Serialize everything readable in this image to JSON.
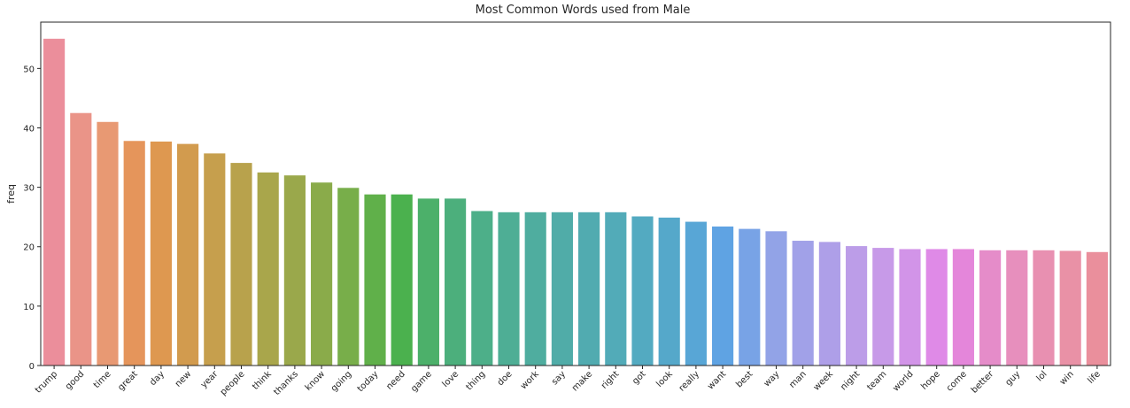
{
  "chart_data": {
    "type": "bar",
    "title": "Most Common Words used from Male",
    "xlabel": "",
    "ylabel": "freq",
    "ylim": [
      0,
      57.8
    ],
    "yticks": [
      0,
      10,
      20,
      30,
      40,
      50
    ],
    "grid": false,
    "categories": [
      "trump",
      "good",
      "time",
      "great",
      "day",
      "new",
      "year",
      "people",
      "think",
      "thanks",
      "know",
      "going",
      "today",
      "need",
      "game",
      "love",
      "thing",
      "doe",
      "work",
      "say",
      "make",
      "right",
      "got",
      "look",
      "really",
      "want",
      "best",
      "way",
      "man",
      "week",
      "night",
      "team",
      "world",
      "hope",
      "come",
      "better",
      "guy",
      "lol",
      "win",
      "life"
    ],
    "values": [
      55,
      42.5,
      41,
      37.8,
      37.7,
      37.3,
      35.7,
      34.1,
      32.5,
      32,
      30.8,
      29.9,
      28.8,
      28.8,
      28.1,
      28.1,
      26,
      25.8,
      25.8,
      25.8,
      25.8,
      25.8,
      25.1,
      24.9,
      24.2,
      23.4,
      23,
      22.6,
      21,
      20.8,
      20.1,
      19.8,
      19.6,
      19.6,
      19.6,
      19.4,
      19.4,
      19.4,
      19.3,
      19.1
    ],
    "colors": [
      "#eb8e9b",
      "#ea9488",
      "#e89973",
      "#e5955b",
      "#de9850",
      "#d29b4e",
      "#c69f4d",
      "#b8a24c",
      "#a9a64b",
      "#9aa84b",
      "#8aab4a",
      "#78ae4a",
      "#60b04a",
      "#4bb14e",
      "#4cb06a",
      "#4caf7c",
      "#4daf89",
      "#4eae95",
      "#4fad9f",
      "#50aca8",
      "#51abb0",
      "#52abb8",
      "#53aac1",
      "#55a8ca",
      "#58a6d6",
      "#5fa3e3",
      "#78a3e6",
      "#92a3e7",
      "#a1a1e8",
      "#ae9fe8",
      "#bc9de8",
      "#c79ae8",
      "#d294e8",
      "#df8ae7",
      "#e486da",
      "#e58cc9",
      "#e78fbd",
      "#e890b1",
      "#e991a6",
      "#ea8f9c"
    ]
  }
}
